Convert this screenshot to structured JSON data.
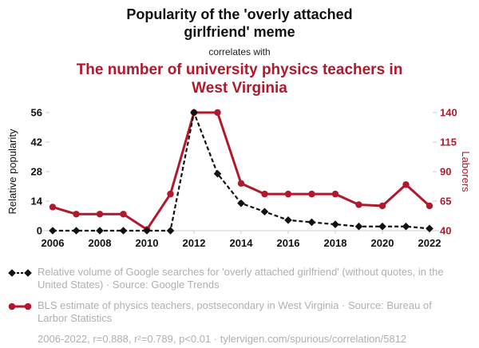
{
  "header": {
    "title_top": "Popularity of the 'overly attached girlfriend' meme",
    "connector": "correlates with",
    "title_bottom": "The number of university physics teachers in West Virginia"
  },
  "colors": {
    "accent": "#b2182b",
    "series_black": "#111111",
    "legend_text": "#b0b0b0",
    "axis_line": "#cccccc"
  },
  "chart_data": {
    "type": "line",
    "x": [
      2006,
      2007,
      2008,
      2009,
      2010,
      2011,
      2012,
      2013,
      2014,
      2015,
      2016,
      2017,
      2018,
      2019,
      2020,
      2021,
      2022
    ],
    "x_ticks": [
      2006,
      2008,
      2010,
      2012,
      2014,
      2016,
      2018,
      2020,
      2022
    ],
    "left_axis": {
      "label": "Relative popularity",
      "range": [
        0,
        56
      ],
      "ticks": [
        0,
        14,
        28,
        42,
        56
      ]
    },
    "right_axis": {
      "label": "Laborers",
      "range": [
        40,
        140
      ],
      "ticks": [
        40,
        65,
        90,
        115,
        140
      ]
    },
    "series": [
      {
        "name": "Relative volume of Google searches for 'overly attached girlfriend'",
        "axis": "left",
        "color": "#111111",
        "line_style": "dashed",
        "marker": "diamond",
        "values": [
          0,
          0,
          0,
          0,
          0,
          0,
          56,
          27,
          13,
          9,
          5,
          4,
          3,
          2,
          2,
          2,
          1
        ]
      },
      {
        "name": "BLS estimate of physics teachers, postsecondary in West Virginia",
        "axis": "right",
        "color": "#b2182b",
        "line_style": "solid",
        "marker": "circle",
        "values": [
          60,
          54,
          54,
          54,
          41,
          71,
          140,
          140,
          80,
          71,
          71,
          71,
          71,
          62,
          61,
          79,
          61
        ]
      }
    ]
  },
  "legend": {
    "items": [
      {
        "text": "Relative volume of Google searches for 'overly attached girlfriend' (without quotes, in the United States) · Source: Google Trends"
      },
      {
        "text": "BLS estimate of physics teachers, postsecondary in West Virginia · Source: Bureau of Larbor Statistics"
      }
    ]
  },
  "footer": {
    "text": "2006-2022, r=0.888, r²=0.789, p<0.01 · tylervigen.com/spurious/correlation/5812"
  }
}
